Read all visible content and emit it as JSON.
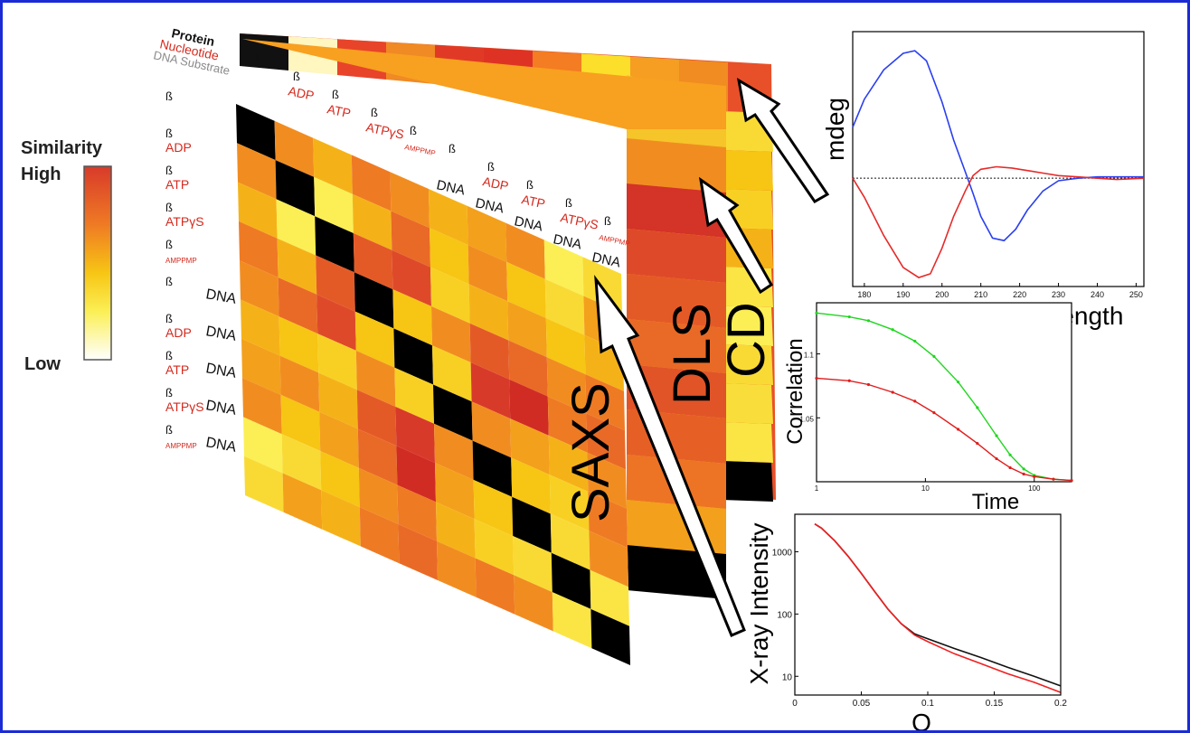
{
  "colors": {
    "border": "#1a2bd6",
    "black": "#000000",
    "red_label": "#d42a1e",
    "cd_blue": "#2b3ff0",
    "cd_red": "#e62a2a",
    "dls_green": "#1fd61f",
    "dls_red": "#e01c1c",
    "saxs_black": "#111111",
    "saxs_red": "#ef2020"
  },
  "legend": {
    "title": "Similarity",
    "high": "High",
    "low": "Low",
    "gradient": [
      "#d83a2a",
      "#ef7a24",
      "#f7c514",
      "#fbef55",
      "#ffffff"
    ]
  },
  "header_labels": {
    "protein": "Protein",
    "nucleotide": "Nucleotide",
    "dna_substrate": "DNA Substrate"
  },
  "matrix": {
    "beta": "ß",
    "row_labels": [
      {
        "beta": "ß",
        "nuc": "",
        "dna": ""
      },
      {
        "beta": "ß",
        "nuc": "ADP",
        "dna": ""
      },
      {
        "beta": "ß",
        "nuc": "ATP",
        "dna": ""
      },
      {
        "beta": "ß",
        "nuc": "ATPγS",
        "dna": ""
      },
      {
        "beta": "ß",
        "nuc": "AMPPMP",
        "dna": ""
      },
      {
        "beta": "ß",
        "nuc": "",
        "dna": "DNA"
      },
      {
        "beta": "ß",
        "nuc": "ADP",
        "dna": "DNA"
      },
      {
        "beta": "ß",
        "nuc": "ATP",
        "dna": "DNA"
      },
      {
        "beta": "ß",
        "nuc": "ATPγS",
        "dna": "DNA"
      },
      {
        "beta": "ß",
        "nuc": "AMPPMP",
        "dna": "DNA"
      }
    ],
    "col_labels": [
      {
        "beta": "ß",
        "nuc": "",
        "dna": ""
      },
      {
        "beta": "ß",
        "nuc": "ADP",
        "dna": ""
      },
      {
        "beta": "ß",
        "nuc": "ATP",
        "dna": ""
      },
      {
        "beta": "ß",
        "nuc": "ATPγS",
        "dna": ""
      },
      {
        "beta": "ß",
        "nuc": "AMPPMP",
        "dna": ""
      },
      {
        "beta": "ß",
        "nuc": "",
        "dna": "DNA"
      },
      {
        "beta": "ß",
        "nuc": "ADP",
        "dna": "DNA"
      },
      {
        "beta": "ß",
        "nuc": "ATP",
        "dna": "DNA"
      },
      {
        "beta": "ß",
        "nuc": "ATPγS",
        "dna": "DNA"
      },
      {
        "beta": "ß",
        "nuc": "AMPPMP",
        "dna": "DNA"
      }
    ],
    "saxs_similarity": [
      [
        1.0,
        0.55,
        0.45,
        0.6,
        0.55,
        0.45,
        0.5,
        0.55,
        0.2,
        0.3
      ],
      [
        0.55,
        1.0,
        0.2,
        0.45,
        0.65,
        0.4,
        0.55,
        0.4,
        0.3,
        0.5
      ],
      [
        0.45,
        0.2,
        1.0,
        0.7,
        0.75,
        0.35,
        0.45,
        0.5,
        0.4,
        0.45
      ],
      [
        0.6,
        0.45,
        0.7,
        1.0,
        0.4,
        0.55,
        0.7,
        0.65,
        0.55,
        0.6
      ],
      [
        0.55,
        0.65,
        0.75,
        0.4,
        1.0,
        0.35,
        0.8,
        0.9,
        0.6,
        0.65
      ],
      [
        0.45,
        0.4,
        0.35,
        0.55,
        0.35,
        1.0,
        0.55,
        0.5,
        0.45,
        0.55
      ],
      [
        0.5,
        0.55,
        0.45,
        0.7,
        0.8,
        0.55,
        1.0,
        0.4,
        0.35,
        0.6
      ],
      [
        0.55,
        0.4,
        0.5,
        0.65,
        0.9,
        0.5,
        0.4,
        1.0,
        0.3,
        0.55
      ],
      [
        0.2,
        0.3,
        0.4,
        0.55,
        0.6,
        0.45,
        0.35,
        0.3,
        1.0,
        0.25
      ],
      [
        0.3,
        0.5,
        0.45,
        0.6,
        0.65,
        0.55,
        0.6,
        0.55,
        0.25,
        1.0
      ]
    ],
    "dls_strip": [
      0.55,
      0.85,
      0.75,
      0.7,
      0.65,
      0.72,
      0.68,
      0.62,
      0.5,
      1.0
    ],
    "cd_strip": [
      0.3,
      0.4,
      0.35,
      0.45,
      0.25,
      0.2,
      0.3,
      0.28,
      0.25,
      1.0
    ],
    "panel_titles": {
      "saxs": "SAXS",
      "dls": "DLS",
      "cd": "CD"
    }
  },
  "chart_data": [
    {
      "type": "line",
      "ylabel": "mdeg",
      "xlabel": "Wavelength",
      "xlim": [
        177,
        252
      ],
      "xticks": [
        "180",
        "190",
        "200",
        "210",
        "220",
        "230",
        "240",
        "250"
      ],
      "series": [
        {
          "x": [
            177,
            180,
            185,
            190,
            193,
            196,
            200,
            203,
            206,
            208,
            210,
            213,
            216,
            219,
            222,
            226,
            230,
            235,
            240,
            245,
            252
          ],
          "y": [
            0.4,
            0.62,
            0.85,
            0.98,
            1.0,
            0.92,
            0.6,
            0.3,
            0.05,
            -0.12,
            -0.3,
            -0.47,
            -0.49,
            -0.4,
            -0.25,
            -0.1,
            -0.02,
            0.0,
            0.01,
            0.01,
            0.01
          ]
        },
        {
          "x": [
            177,
            180,
            185,
            190,
            194,
            197,
            200,
            203,
            206,
            208,
            210,
            214,
            218,
            222,
            226,
            230,
            235,
            240,
            245,
            252
          ],
          "y": [
            0.0,
            -0.15,
            -0.45,
            -0.7,
            -0.78,
            -0.75,
            -0.55,
            -0.3,
            -0.1,
            0.02,
            0.07,
            0.09,
            0.08,
            0.06,
            0.04,
            0.02,
            0.01,
            0.0,
            -0.01,
            0.0
          ]
        }
      ],
      "baseline": 0
    },
    {
      "type": "line",
      "ylabel": "Correlation",
      "xlabel": "Time",
      "xscale": "log",
      "xlim": [
        1,
        220
      ],
      "ylim": [
        1.0,
        1.14
      ],
      "xticks": [
        "1",
        "10",
        "100"
      ],
      "yticks": [
        "1.05",
        "1.1"
      ],
      "series": [
        {
          "x": [
            1,
            2,
            3,
            5,
            8,
            12,
            20,
            30,
            45,
            60,
            80,
            100,
            150,
            220
          ],
          "y": [
            1.132,
            1.129,
            1.126,
            1.119,
            1.11,
            1.098,
            1.078,
            1.058,
            1.036,
            1.021,
            1.01,
            1.005,
            1.002,
            1.001
          ]
        },
        {
          "x": [
            1,
            2,
            3,
            5,
            8,
            12,
            20,
            30,
            45,
            60,
            80,
            100,
            150,
            220
          ],
          "y": [
            1.081,
            1.079,
            1.076,
            1.07,
            1.063,
            1.054,
            1.041,
            1.03,
            1.018,
            1.011,
            1.006,
            1.004,
            1.002,
            1.001
          ]
        }
      ]
    },
    {
      "type": "line",
      "ylabel": "X-ray Intensity",
      "xlabel": "Q",
      "yscale": "log",
      "xlim": [
        0,
        0.2
      ],
      "ylim": [
        5,
        4000
      ],
      "xticks": [
        "0",
        "0.05",
        "0.1",
        "0.15",
        "0.2"
      ],
      "yticks": [
        "10",
        "100",
        "1000"
      ],
      "series": [
        {
          "x": [
            0.015,
            0.02,
            0.03,
            0.04,
            0.05,
            0.06,
            0.07,
            0.08,
            0.09,
            0.1,
            0.12,
            0.14,
            0.16,
            0.18,
            0.2
          ],
          "y": [
            2800,
            2400,
            1500,
            850,
            450,
            230,
            120,
            70,
            48,
            40,
            28,
            20,
            14,
            10,
            7
          ]
        },
        {
          "x": [
            0.015,
            0.02,
            0.03,
            0.04,
            0.05,
            0.06,
            0.07,
            0.08,
            0.09,
            0.1,
            0.12,
            0.14,
            0.16,
            0.18,
            0.2
          ],
          "y": [
            2800,
            2400,
            1500,
            850,
            450,
            230,
            120,
            70,
            46,
            36,
            23,
            16,
            11,
            8,
            5.5
          ]
        }
      ]
    }
  ]
}
